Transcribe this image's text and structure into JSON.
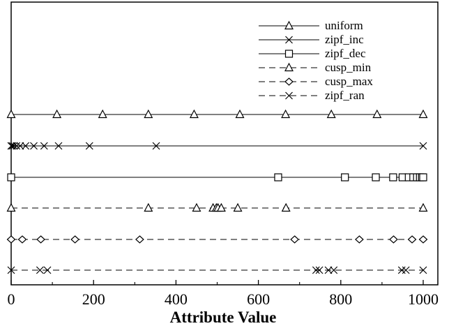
{
  "chart_data": {
    "type": "line",
    "title": "",
    "xlabel": "Attribute Value",
    "ylabel": "",
    "xlim": [
      0,
      1000
    ],
    "xticks": [
      0,
      200,
      400,
      600,
      800,
      1000
    ],
    "grid": false,
    "legend_position": "top-right",
    "series": [
      {
        "name": "uniform",
        "line_style": "solid",
        "marker": "triangle",
        "x": [
          0,
          111,
          222,
          333,
          444,
          555,
          666,
          777,
          888,
          1000
        ]
      },
      {
        "name": "zipf_inc",
        "line_style": "solid",
        "marker": "x",
        "x": [
          0,
          3,
          7,
          13,
          22,
          35,
          55,
          80,
          115,
          190,
          352,
          1000
        ]
      },
      {
        "name": "zipf_dec",
        "line_style": "solid",
        "marker": "square",
        "x": [
          0,
          648,
          810,
          885,
          927,
          950,
          965,
          976,
          985,
          992,
          997,
          1000
        ]
      },
      {
        "name": "cusp_min",
        "line_style": "dashed",
        "marker": "triangle",
        "x": [
          0,
          333,
          450,
          490,
          498,
          502,
          510,
          550,
          667,
          1000
        ]
      },
      {
        "name": "cusp_max",
        "line_style": "dashed",
        "marker": "diamond",
        "x": [
          0,
          27,
          72,
          155,
          312,
          688,
          845,
          928,
          973,
          1000
        ]
      },
      {
        "name": "zipf_ran",
        "line_style": "dashed",
        "marker": "x",
        "x": [
          0,
          70,
          88,
          740,
          748,
          770,
          783,
          948,
          958,
          1000
        ]
      }
    ]
  }
}
